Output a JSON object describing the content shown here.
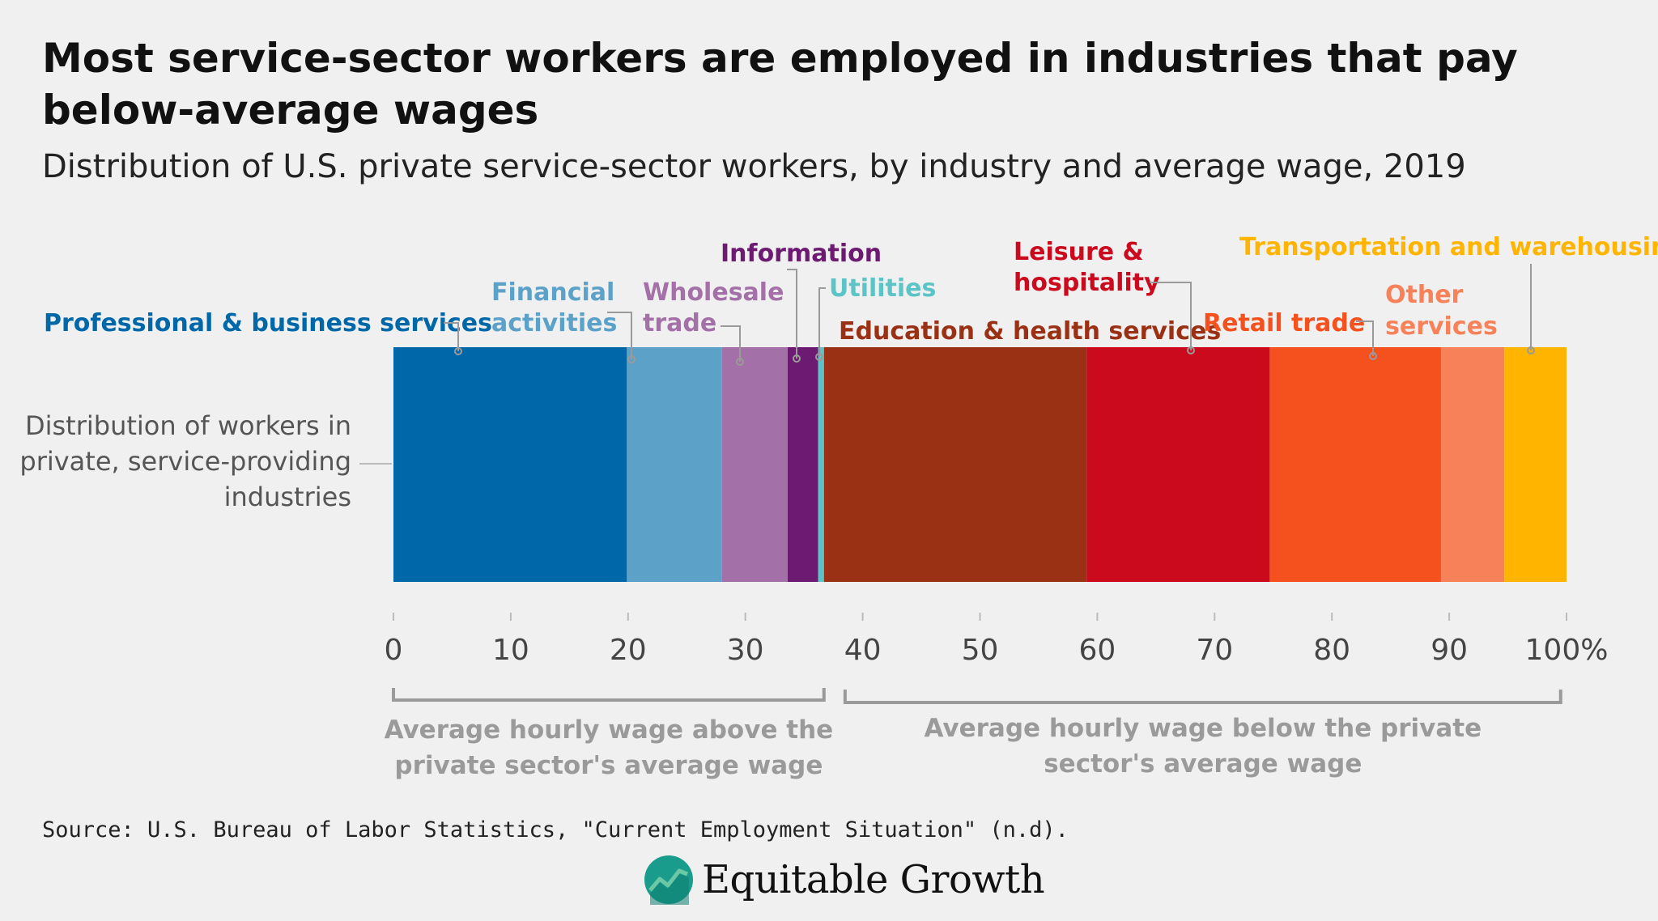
{
  "title": "Most service-sector workers are employed in industries that pay below-average wages",
  "subtitle": "Distribution of U.S. private service-sector workers, by industry and average wage, 2019",
  "source": "Source: U.S. Bureau of Labor Statistics, \"Current Employment Situation\" (n.d).",
  "logo": {
    "text": "Equitable Growth",
    "icon": "growth-chart-icon",
    "colors": [
      "#1a9c8c",
      "#6cc7a4"
    ]
  },
  "chart_data": {
    "type": "bar",
    "orientation": "horizontal-stacked",
    "row_label": [
      "Distribution of workers in",
      "private, service-providing",
      "industries"
    ],
    "xlim": [
      0,
      100
    ],
    "ticks": [
      "0",
      "10",
      "20",
      "30",
      "40",
      "50",
      "60",
      "70",
      "80",
      "90",
      "100%"
    ],
    "series": [
      {
        "name": [
          "Professional & business services"
        ],
        "value": 19.9,
        "color": "#0068a8"
      },
      {
        "name": [
          "Financial",
          "activities"
        ],
        "value": 8.1,
        "color": "#5ca2c8"
      },
      {
        "name": [
          "Wholesale",
          "trade"
        ],
        "value": 5.6,
        "color": "#a470a8"
      },
      {
        "name": [
          "Information"
        ],
        "value": 2.6,
        "color": "#6c1a72"
      },
      {
        "name": [
          "Utilities"
        ],
        "value": 0.5,
        "color": "#5cc4c6"
      },
      {
        "name": [
          "Education & health services"
        ],
        "value": 22.4,
        "color": "#9a3114"
      },
      {
        "name": [
          "Leisure &",
          "hospitality"
        ],
        "value": 15.6,
        "color": "#cc0a1e"
      },
      {
        "name": [
          "Retail trade"
        ],
        "value": 14.6,
        "color": "#f4511e"
      },
      {
        "name": [
          "Other",
          "services"
        ],
        "value": 5.4,
        "color": "#f7825a"
      },
      {
        "name": [
          "Transportation and warehousing"
        ],
        "value": 5.3,
        "color": "#ffb400"
      }
    ],
    "brackets": [
      {
        "label": [
          "Average hourly wage above the",
          "private sector's average wage"
        ],
        "range": [
          0,
          36.7
        ]
      },
      {
        "label": [
          "Average hourly wage below the private",
          "sector's average wage"
        ],
        "range": [
          38.5,
          99.5
        ]
      }
    ]
  }
}
